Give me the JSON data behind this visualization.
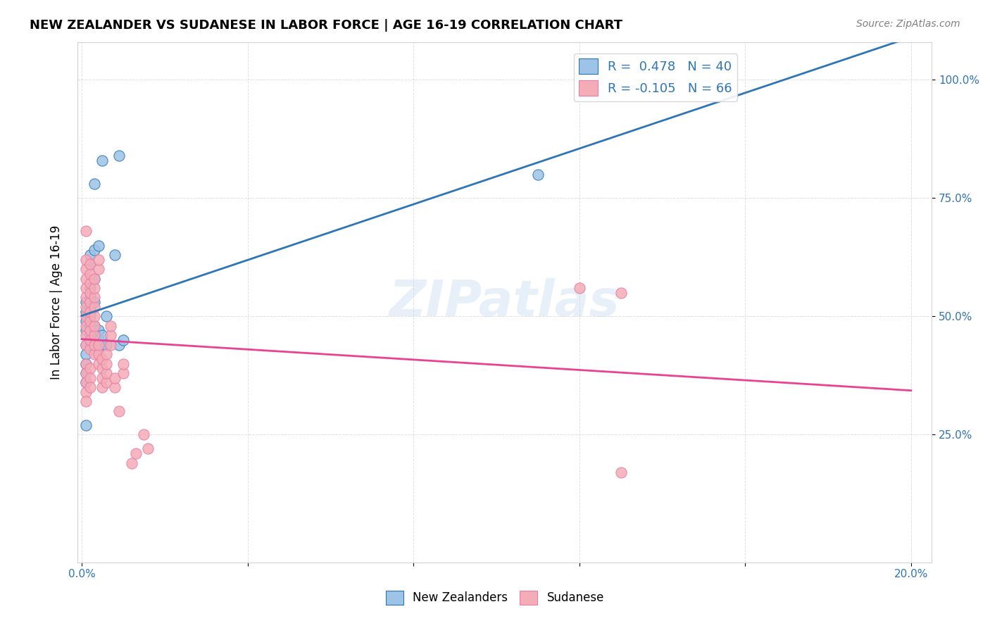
{
  "title": "NEW ZEALANDER VS SUDANESE IN LABOR FORCE | AGE 16-19 CORRELATION CHART",
  "source": "Source: ZipAtlas.com",
  "xlabel_label": "New Zealanders",
  "ylabel_label": "In Labor Force | Age 16-19",
  "x_ticks": [
    0.0,
    0.04,
    0.08,
    0.12,
    0.16,
    0.2
  ],
  "x_tick_labels": [
    "0.0%",
    "",
    "",
    "",
    "",
    "20.0%"
  ],
  "y_ticks": [
    0.0,
    0.25,
    0.5,
    0.75,
    1.0
  ],
  "y_tick_labels": [
    "",
    "25.0%",
    "50.0%",
    "75.0%",
    "100.0%"
  ],
  "nz_R": 0.478,
  "nz_N": 40,
  "sud_R": -0.105,
  "sud_N": 66,
  "nz_color": "#9dc3e6",
  "sud_color": "#f4acb7",
  "nz_line_color": "#2e75b6",
  "sud_line_color": "#e84393",
  "watermark": "ZIPatlas",
  "nz_x": [
    0.001,
    0.001,
    0.001,
    0.001,
    0.001,
    0.001,
    0.001,
    0.001,
    0.001,
    0.001,
    0.002,
    0.002,
    0.002,
    0.002,
    0.002,
    0.002,
    0.002,
    0.002,
    0.002,
    0.003,
    0.003,
    0.003,
    0.003,
    0.003,
    0.003,
    0.003,
    0.004,
    0.004,
    0.004,
    0.004,
    0.005,
    0.005,
    0.005,
    0.006,
    0.006,
    0.008,
    0.009,
    0.009,
    0.01,
    0.11
  ],
  "nz_y": [
    0.44,
    0.42,
    0.4,
    0.38,
    0.36,
    0.47,
    0.49,
    0.51,
    0.53,
    0.27,
    0.44,
    0.46,
    0.48,
    0.5,
    0.52,
    0.54,
    0.56,
    0.61,
    0.63,
    0.44,
    0.46,
    0.48,
    0.53,
    0.58,
    0.64,
    0.78,
    0.43,
    0.45,
    0.47,
    0.65,
    0.44,
    0.46,
    0.83,
    0.44,
    0.5,
    0.63,
    0.44,
    0.84,
    0.45,
    0.8
  ],
  "sud_x": [
    0.001,
    0.001,
    0.001,
    0.001,
    0.001,
    0.001,
    0.001,
    0.001,
    0.001,
    0.001,
    0.001,
    0.001,
    0.001,
    0.001,
    0.001,
    0.001,
    0.002,
    0.002,
    0.002,
    0.002,
    0.002,
    0.002,
    0.002,
    0.002,
    0.002,
    0.002,
    0.002,
    0.002,
    0.002,
    0.003,
    0.003,
    0.003,
    0.003,
    0.003,
    0.003,
    0.003,
    0.003,
    0.003,
    0.004,
    0.004,
    0.004,
    0.004,
    0.004,
    0.005,
    0.005,
    0.005,
    0.005,
    0.006,
    0.006,
    0.006,
    0.006,
    0.007,
    0.007,
    0.007,
    0.008,
    0.008,
    0.009,
    0.01,
    0.01,
    0.012,
    0.013,
    0.015,
    0.016,
    0.12,
    0.13,
    0.13
  ],
  "sud_y": [
    0.44,
    0.46,
    0.48,
    0.5,
    0.52,
    0.54,
    0.56,
    0.58,
    0.6,
    0.62,
    0.4,
    0.38,
    0.36,
    0.34,
    0.32,
    0.68,
    0.43,
    0.45,
    0.47,
    0.49,
    0.51,
    0.53,
    0.55,
    0.57,
    0.59,
    0.61,
    0.39,
    0.37,
    0.35,
    0.42,
    0.44,
    0.46,
    0.48,
    0.5,
    0.52,
    0.54,
    0.56,
    0.58,
    0.4,
    0.42,
    0.44,
    0.6,
    0.62,
    0.35,
    0.37,
    0.39,
    0.41,
    0.36,
    0.38,
    0.4,
    0.42,
    0.44,
    0.46,
    0.48,
    0.35,
    0.37,
    0.3,
    0.38,
    0.4,
    0.19,
    0.21,
    0.25,
    0.22,
    0.56,
    0.17,
    0.55
  ]
}
